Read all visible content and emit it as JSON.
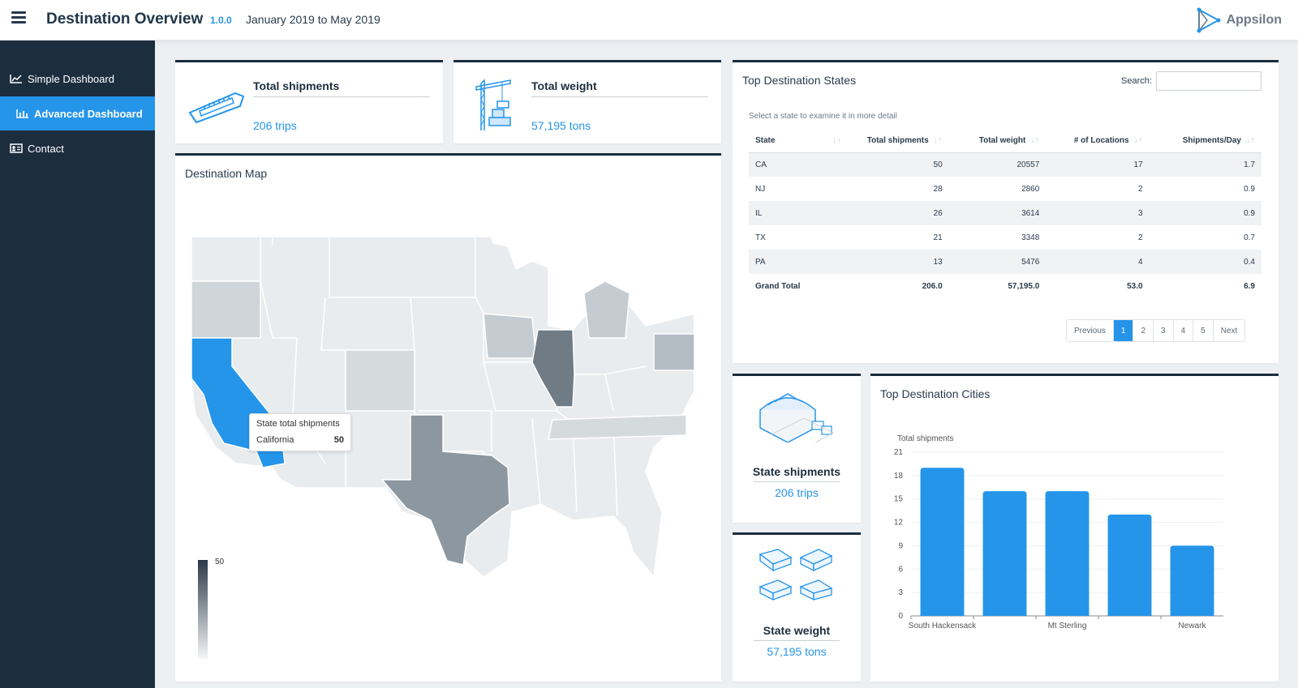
{
  "header": {
    "title": "Destination Overview",
    "version": "1.0.0",
    "date_range": "January 2019 to May 2019",
    "brand": "Appsilon",
    "menu_icon": "hamburger-icon",
    "brand_icon": "appsilon-logo-icon"
  },
  "sidebar": {
    "items": [
      {
        "label": "Simple Dashboard",
        "icon": "line-chart-icon",
        "active": false
      },
      {
        "label": "Advanced Dashboard",
        "icon": "bar-chart-icon",
        "active": true
      },
      {
        "label": "Contact",
        "icon": "id-card-icon",
        "active": false
      }
    ]
  },
  "kpis": {
    "total_shipments": {
      "label": "Total shipments",
      "value": "206 trips",
      "icon": "cargo-ship-icon"
    },
    "total_weight": {
      "label": "Total weight",
      "value": "57,195 tons",
      "icon": "crane-icon"
    }
  },
  "top_states": {
    "title": "Top Destination States",
    "search_label": "Search:",
    "search_value": "",
    "caption": "Select a state to examine it in more detail",
    "columns": [
      "State",
      "Total shipments",
      "Total weight",
      "# of Locations",
      "Shipments/Day"
    ],
    "rows": [
      [
        "CA",
        "50",
        "20557",
        "17",
        "1.7"
      ],
      [
        "NJ",
        "28",
        "2860",
        "2",
        "0.9"
      ],
      [
        "IL",
        "26",
        "3614",
        "3",
        "0.9"
      ],
      [
        "TX",
        "21",
        "3348",
        "2",
        "0.7"
      ],
      [
        "PA",
        "13",
        "5476",
        "4",
        "0.4"
      ]
    ],
    "footer": [
      "Grand Total",
      "206.0",
      "57,195.0",
      "53.0",
      "6.9"
    ],
    "pagination": {
      "previous": "Previous",
      "pages": [
        "1",
        "2",
        "3",
        "4",
        "5"
      ],
      "current": "1",
      "next": "Next"
    }
  },
  "map": {
    "title": "Destination Map",
    "tooltip": {
      "title": "State total shipments",
      "state": "California",
      "value": "50"
    },
    "legend_max": "50",
    "highlight_color": "#2595ea"
  },
  "state_kpis": {
    "shipments": {
      "label": "State shipments",
      "value": "206 trips",
      "icon": "warehouse-icon"
    },
    "weight": {
      "label": "State weight",
      "value": "57,195 tons",
      "icon": "trucks-icon"
    }
  },
  "cities": {
    "title": "Top Destination Cities"
  },
  "chart_data": {
    "type": "bar",
    "title": "Top Destination Cities",
    "ylabel": "Total shipments",
    "xlabel": "",
    "categories": [
      "South Hackensack",
      "",
      "Mt Sterling",
      "",
      "Newark"
    ],
    "values": [
      19,
      16,
      16,
      13,
      9
    ],
    "yticks": [
      0,
      3,
      6,
      9,
      12,
      15,
      18,
      21
    ],
    "ylim": [
      0,
      21
    ],
    "color": "#2595ea",
    "grid": true
  },
  "colors": {
    "accent": "#2595ea",
    "sidebar": "#1c2d3e",
    "background": "#ecf0f3"
  }
}
